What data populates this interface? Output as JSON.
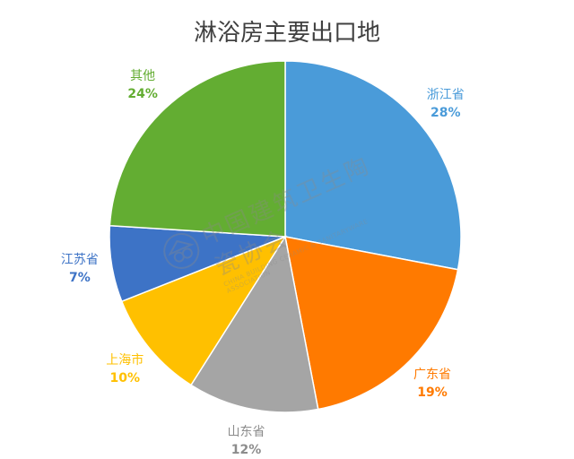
{
  "chart_data": {
    "type": "pie",
    "title": "淋浴房主要出口地",
    "slices": [
      {
        "name": "浙江省",
        "value": 28,
        "percent_label": "28%",
        "color": "#4a9bd9"
      },
      {
        "name": "广东省",
        "value": 19,
        "percent_label": "19%",
        "color": "#ff7a00"
      },
      {
        "name": "山东省",
        "value": 12,
        "percent_label": "12%",
        "color": "#a5a5a5"
      },
      {
        "name": "上海市",
        "value": 10,
        "percent_label": "10%",
        "color": "#ffc000"
      },
      {
        "name": "江苏省",
        "value": 7,
        "percent_label": "7%",
        "color": "#3d73c6"
      },
      {
        "name": "其他",
        "value": 24,
        "percent_label": "24%",
        "color": "#63ad32"
      }
    ],
    "start_angle": "12 o'clock",
    "direction": "clockwise"
  },
  "watermark": {
    "org_cn": "中国建筑卫生陶瓷协会",
    "org_en": "CHINA BUILDING CERAMIC & SANITARYWARE ASSOCIATION",
    "logo_icon": "association-seal-icon"
  }
}
